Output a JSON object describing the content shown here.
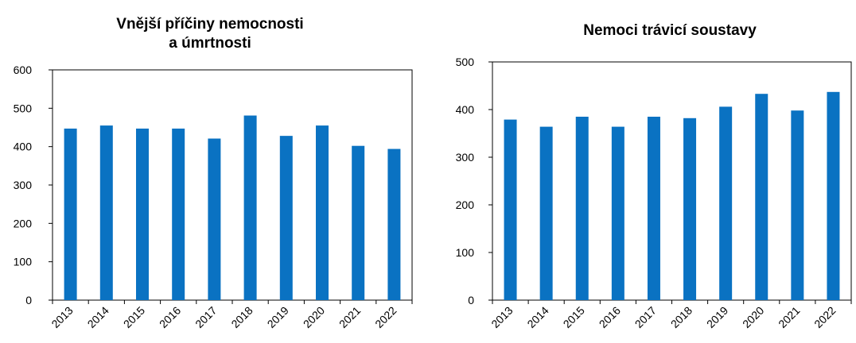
{
  "chart_data": [
    {
      "type": "bar",
      "title_lines": [
        "Vnější příčiny nemocnosti",
        "a úmrtnosti"
      ],
      "categories": [
        "2013",
        "2014",
        "2015",
        "2016",
        "2017",
        "2018",
        "2019",
        "2020",
        "2021",
        "2022"
      ],
      "values": [
        447,
        455,
        447,
        447,
        421,
        481,
        428,
        455,
        402,
        394
      ],
      "ylim": [
        0,
        600
      ],
      "yticks": [
        0,
        100,
        200,
        300,
        400,
        500,
        600
      ],
      "xlabel": "",
      "ylabel": "",
      "grid": false,
      "bar_color": "#0a72c2"
    },
    {
      "type": "bar",
      "title_lines": [
        "Nemoci trávicí soustavy"
      ],
      "categories": [
        "2013",
        "2014",
        "2015",
        "2016",
        "2017",
        "2018",
        "2019",
        "2020",
        "2021",
        "2022"
      ],
      "values": [
        379,
        364,
        385,
        364,
        385,
        382,
        406,
        433,
        398,
        437
      ],
      "ylim": [
        0,
        500
      ],
      "yticks": [
        0,
        100,
        200,
        300,
        400,
        500
      ],
      "xlabel": "",
      "ylabel": "",
      "grid": false,
      "bar_color": "#0a72c2"
    }
  ]
}
